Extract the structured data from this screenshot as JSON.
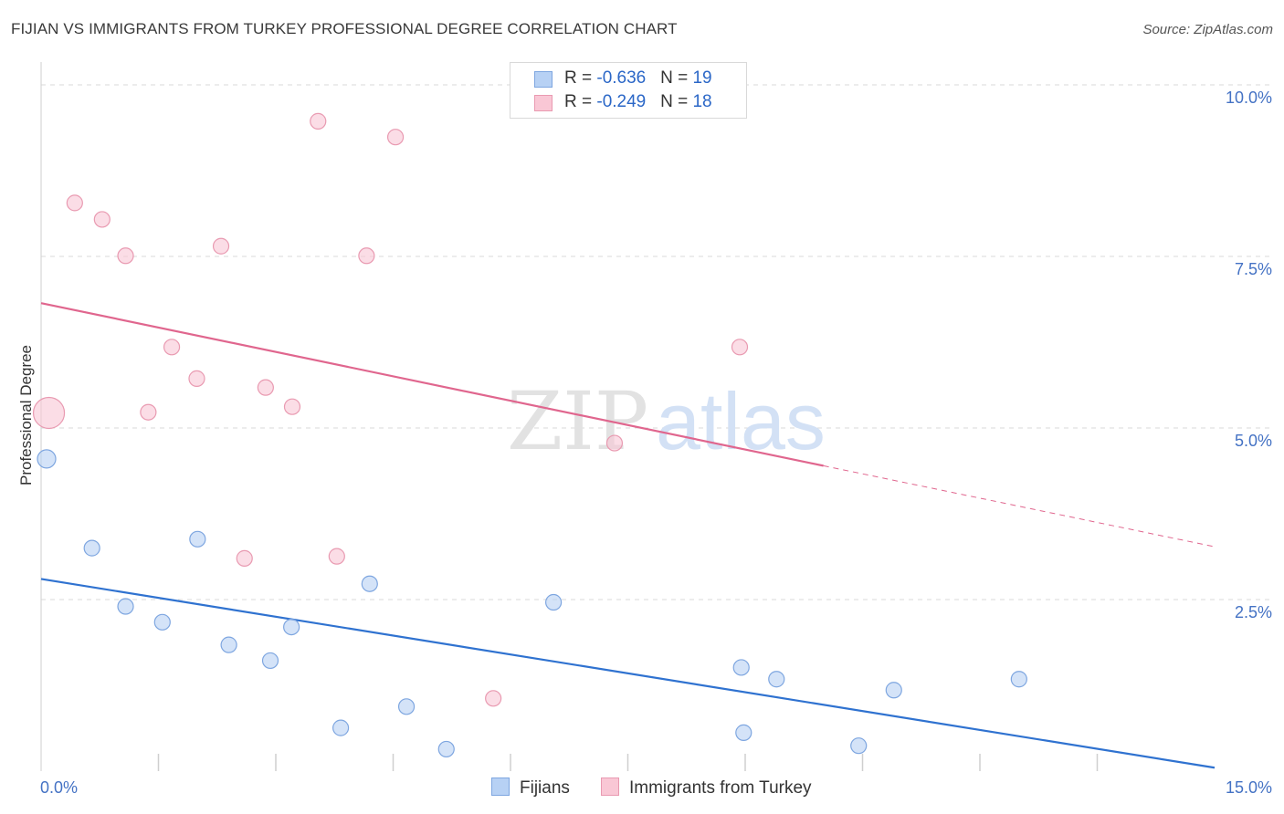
{
  "header": {
    "title": "FIJIAN VS IMMIGRANTS FROM TURKEY PROFESSIONAL DEGREE CORRELATION CHART",
    "source": "Source: ZipAtlas.com"
  },
  "legend_top": {
    "rows": [
      {
        "r_label": "R = ",
        "r_value": "-0.636",
        "n_label": "N = ",
        "n_value": "19"
      },
      {
        "r_label": "R = ",
        "r_value": "-0.249",
        "n_label": "N = ",
        "n_value": "18"
      }
    ]
  },
  "legend_bottom": {
    "fijians": "Fijians",
    "turkey": "Immigrants from Turkey"
  },
  "watermark": {
    "zip": "ZIP",
    "atlas": "atlas"
  },
  "colors": {
    "blue_fill": "#b7d1f4",
    "blue_stroke": "#7ea6e0",
    "blue_line": "#2f72d0",
    "pink_fill": "#f9c7d5",
    "pink_stroke": "#e99ab1",
    "pink_line": "#e0668e",
    "grid": "#d9d9d9",
    "tick_text": "#4472c4"
  },
  "chart_data": {
    "type": "scatter",
    "title": "FIJIAN VS IMMIGRANTS FROM TURKEY PROFESSIONAL DEGREE CORRELATION CHART",
    "xlabel": "",
    "ylabel": "Professional Degree",
    "xlim": [
      0,
      15
    ],
    "ylim": [
      0,
      10.2
    ],
    "x_tick_labels": [
      {
        "value": 0,
        "label": "0.0%"
      },
      {
        "value": 15,
        "label": "15.0%"
      }
    ],
    "y_tick_labels": [
      {
        "value": 2.5,
        "label": "2.5%"
      },
      {
        "value": 5.0,
        "label": "5.0%"
      },
      {
        "value": 7.5,
        "label": "7.5%"
      },
      {
        "value": 10.0,
        "label": "10.0%"
      }
    ],
    "x_minor_ticks": [
      1.5,
      3.0,
      4.5,
      6.0,
      7.5,
      9.0,
      10.5,
      12.0,
      13.5
    ],
    "gridlines": true,
    "series": [
      {
        "name": "Fijians",
        "r": -0.636,
        "n": 19,
        "points": [
          {
            "x": 0.07,
            "y": 4.55,
            "size": "large"
          },
          {
            "x": 0.65,
            "y": 3.25
          },
          {
            "x": 1.08,
            "y": 2.4
          },
          {
            "x": 1.55,
            "y": 2.17
          },
          {
            "x": 2.0,
            "y": 3.38
          },
          {
            "x": 2.4,
            "y": 1.84
          },
          {
            "x": 2.93,
            "y": 1.61
          },
          {
            "x": 3.2,
            "y": 2.1
          },
          {
            "x": 3.83,
            "y": 0.63
          },
          {
            "x": 4.2,
            "y": 2.73
          },
          {
            "x": 4.67,
            "y": 0.94
          },
          {
            "x": 5.18,
            "y": 0.32
          },
          {
            "x": 6.55,
            "y": 2.46
          },
          {
            "x": 8.95,
            "y": 1.51
          },
          {
            "x": 8.98,
            "y": 0.56
          },
          {
            "x": 9.4,
            "y": 1.34
          },
          {
            "x": 10.45,
            "y": 0.37
          },
          {
            "x": 10.9,
            "y": 1.18
          },
          {
            "x": 12.5,
            "y": 1.34
          }
        ],
        "trend": {
          "x_start": 0.0,
          "y_start": 2.8,
          "x_end": 15.0,
          "y_end": 0.05
        }
      },
      {
        "name": "Immigrants from Turkey",
        "r": -0.249,
        "n": 18,
        "points": [
          {
            "x": 0.1,
            "y": 5.22,
            "size": "xlarge"
          },
          {
            "x": 0.43,
            "y": 8.28
          },
          {
            "x": 0.78,
            "y": 8.04
          },
          {
            "x": 1.08,
            "y": 7.51
          },
          {
            "x": 1.37,
            "y": 5.23
          },
          {
            "x": 1.67,
            "y": 6.18
          },
          {
            "x": 1.99,
            "y": 5.72
          },
          {
            "x": 2.3,
            "y": 7.65
          },
          {
            "x": 2.6,
            "y": 3.1
          },
          {
            "x": 2.87,
            "y": 5.59
          },
          {
            "x": 3.21,
            "y": 5.31
          },
          {
            "x": 3.54,
            "y": 9.47
          },
          {
            "x": 3.78,
            "y": 3.13
          },
          {
            "x": 4.16,
            "y": 7.51
          },
          {
            "x": 4.53,
            "y": 9.24
          },
          {
            "x": 5.78,
            "y": 1.06
          },
          {
            "x": 7.33,
            "y": 4.78
          },
          {
            "x": 8.93,
            "y": 6.18
          }
        ],
        "trend": {
          "x_start": 0.0,
          "y_start": 6.82,
          "x_end": 10.0,
          "y_end": 4.45,
          "dashed_to_x": 15.0,
          "dashed_to_y": 3.27
        }
      }
    ]
  }
}
